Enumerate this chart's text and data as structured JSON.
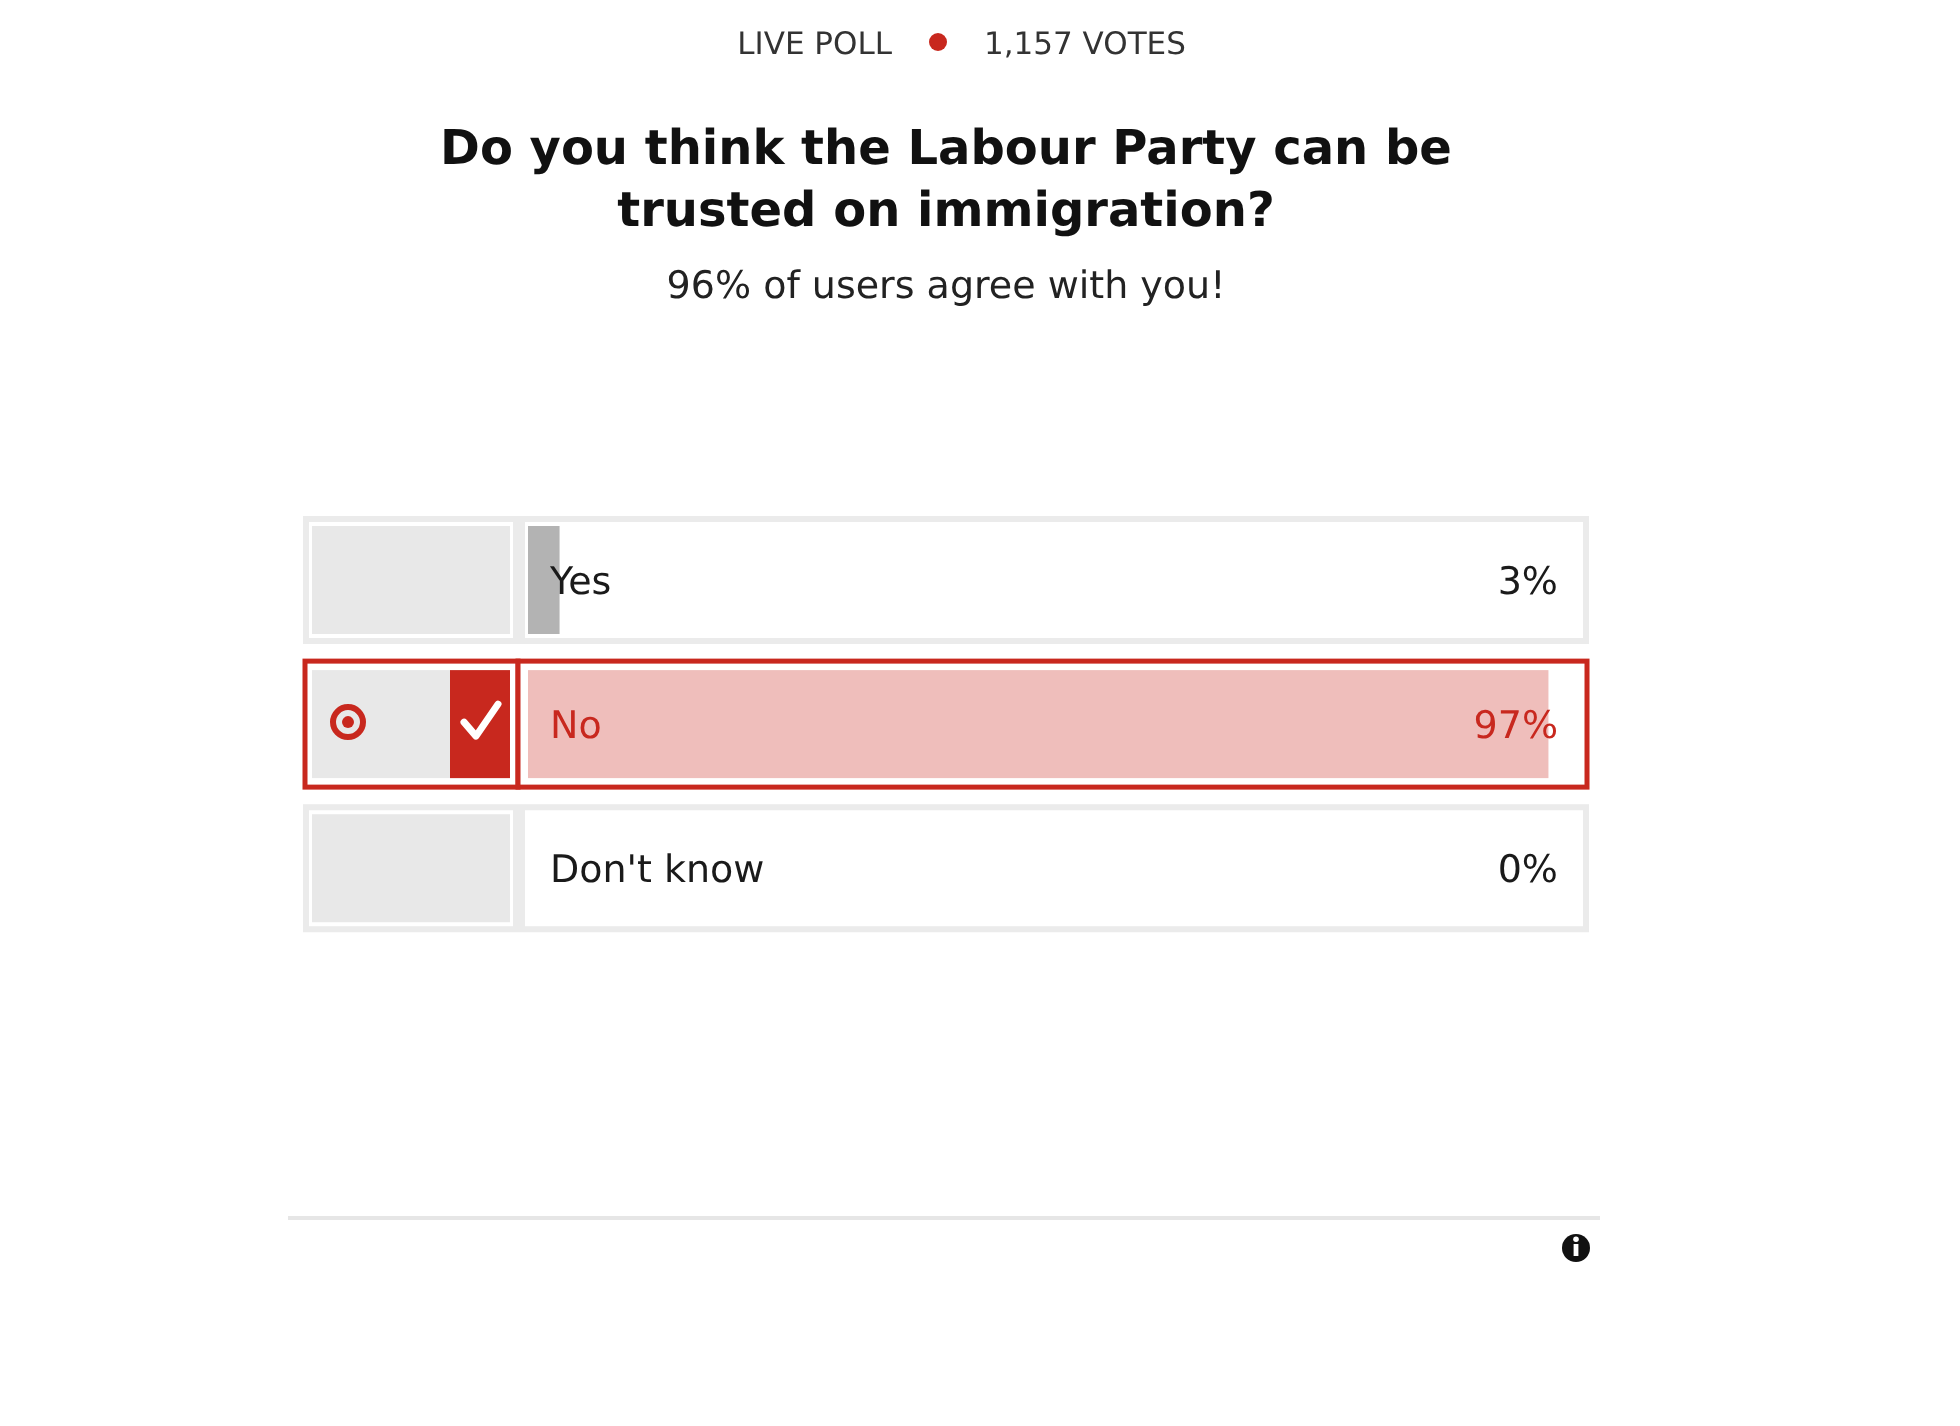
{
  "chart_data": {
    "type": "bar",
    "orientation": "horizontal",
    "title": "Do you think the Labour Party can be trusted on immigration?",
    "subtitle": "96% of users agree with you!",
    "annotations": [
      "LIVE POLL",
      "1,157 VOTES"
    ],
    "categories": [
      "Yes",
      "No",
      "Don't know"
    ],
    "values": [
      3,
      97,
      0
    ],
    "value_labels": [
      "3%",
      "97%",
      "0%"
    ],
    "colors": [
      "#b3b3b3",
      "#efbebb",
      "#b3b3b3"
    ],
    "xlim": [
      0,
      100
    ]
  }
}
